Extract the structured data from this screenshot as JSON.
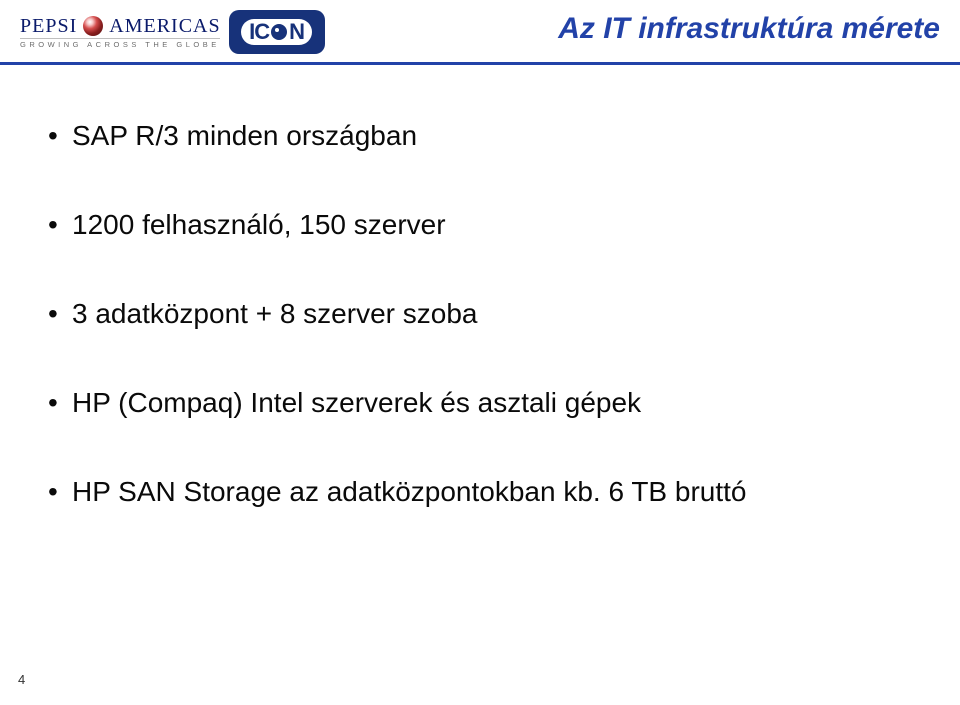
{
  "header": {
    "pepsi_brand_left": "PEPSI",
    "pepsi_brand_right": "AMERICAS",
    "pepsi_tagline": "GROWING ACROSS THE GLOBE",
    "icon_text_left": "IC",
    "icon_text_right": "N",
    "title": "Az IT infrastruktúra mérete"
  },
  "colors": {
    "title_color": "#2242a8",
    "separator_color": "#2242a8",
    "icon_bg": "#17327a",
    "text_color": "#0a0a0a"
  },
  "bullets": [
    "SAP R/3 minden országban",
    "1200 felhasználó, 150 szerver",
    "3 adatközpont + 8 szerver szoba",
    "HP (Compaq) Intel szerverek és asztali gépek",
    "HP SAN Storage az adatközpontokban kb. 6 TB bruttó"
  ],
  "page_number": "4"
}
